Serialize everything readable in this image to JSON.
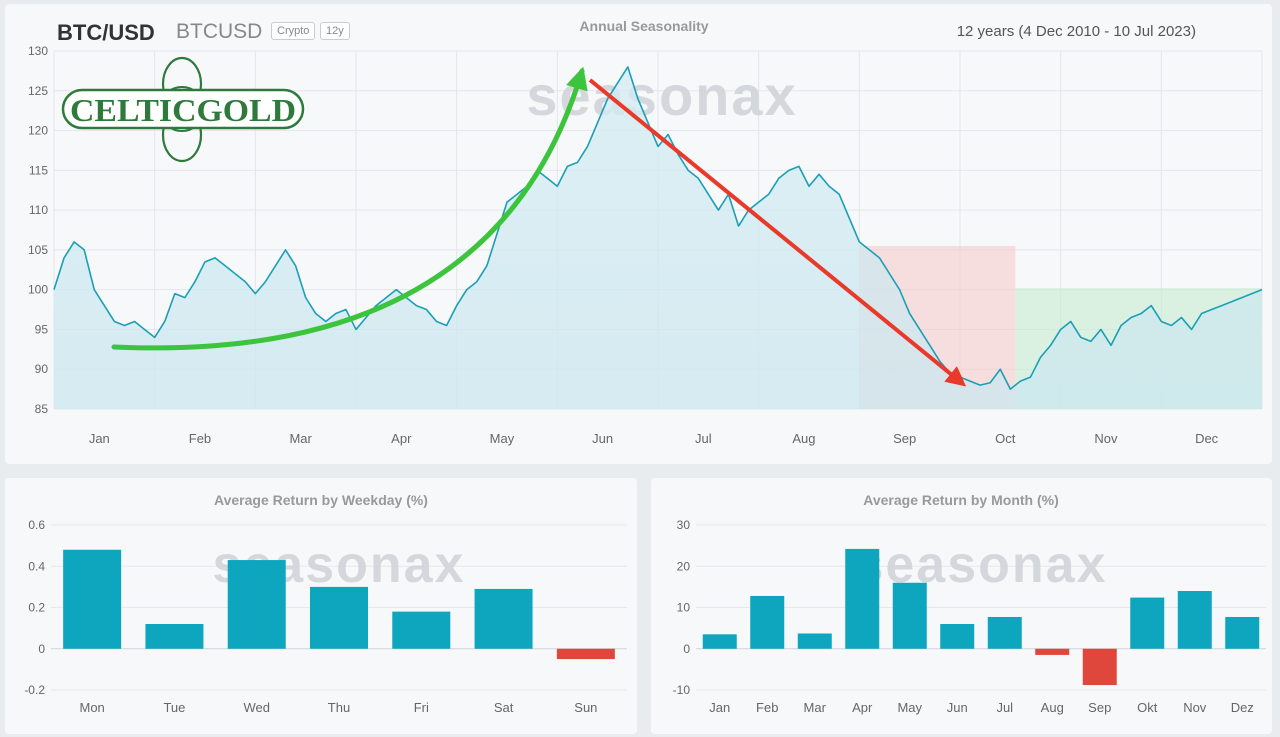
{
  "header": {
    "symbol": "BTC/USD",
    "ticker": "BTCUSD",
    "badges": [
      "Crypto",
      "12y"
    ],
    "period": "12 years (4 Dec 2010 - 10 Jul 2023)"
  },
  "watermark": "seasonax",
  "logo_text": "CELTICGOLD",
  "colors": {
    "line": "#1a9fb5",
    "bar_positive": "#0ea5be",
    "bar_negative": "#e0473c",
    "green_arrow": "#3cc43c",
    "red_arrow": "#e8392a",
    "shade_red": "#f5c9c6",
    "shade_green": "#c6ecd2"
  },
  "chart_data": [
    {
      "type": "line",
      "title": "Annual Seasonality",
      "ylim": [
        85,
        130
      ],
      "yticks": [
        85,
        90,
        95,
        100,
        105,
        110,
        115,
        120,
        125,
        130
      ],
      "months": [
        "Jan",
        "Feb",
        "Mar",
        "Apr",
        "May",
        "Jun",
        "Jul",
        "Aug",
        "Sep",
        "Oct",
        "Nov",
        "Dec"
      ],
      "x": [
        0,
        0.1,
        0.2,
        0.3,
        0.4,
        0.5,
        0.6,
        0.7,
        0.8,
        0.9,
        1.0,
        1.1,
        1.2,
        1.3,
        1.4,
        1.5,
        1.6,
        1.7,
        1.8,
        1.9,
        2.0,
        2.1,
        2.2,
        2.3,
        2.4,
        2.5,
        2.6,
        2.7,
        2.8,
        2.9,
        3.0,
        3.1,
        3.2,
        3.3,
        3.4,
        3.5,
        3.6,
        3.7,
        3.8,
        3.9,
        4.0,
        4.1,
        4.2,
        4.3,
        4.4,
        4.5,
        4.6,
        4.7,
        4.8,
        4.9,
        5.0,
        5.1,
        5.2,
        5.3,
        5.4,
        5.5,
        5.6,
        5.7,
        5.8,
        5.9,
        6.0,
        6.1,
        6.2,
        6.3,
        6.4,
        6.5,
        6.6,
        6.7,
        6.8,
        6.9,
        7.0,
        7.1,
        7.2,
        7.3,
        7.4,
        7.5,
        7.6,
        7.7,
        7.8,
        7.9,
        8.0,
        8.1,
        8.2,
        8.3,
        8.4,
        8.5,
        8.6,
        8.7,
        8.8,
        8.9,
        9.0,
        9.1,
        9.2,
        9.3,
        9.4,
        9.5,
        9.6,
        9.7,
        9.8,
        9.9,
        10.0,
        10.1,
        10.2,
        10.3,
        10.4,
        10.5,
        10.6,
        10.7,
        10.8,
        10.9,
        11.0,
        11.1,
        11.2,
        11.3,
        11.4,
        11.5,
        11.6,
        11.7,
        11.8,
        11.9,
        12.0
      ],
      "y": [
        100,
        104,
        106,
        105,
        100,
        98,
        96,
        95.5,
        96,
        95,
        94,
        96,
        99.5,
        99,
        101,
        103.5,
        104,
        103,
        102,
        101,
        99.5,
        101,
        103,
        105,
        103,
        99,
        97,
        96,
        97,
        97.5,
        95,
        96.5,
        98,
        99,
        100,
        99,
        98,
        97.5,
        96,
        95.5,
        98,
        100,
        101,
        103,
        107,
        111,
        112,
        113,
        115,
        114,
        113,
        115.5,
        116,
        118,
        121,
        124,
        126,
        128,
        124,
        121,
        118,
        119.5,
        117,
        115,
        114,
        112,
        110,
        112,
        108,
        110,
        111,
        112,
        114,
        115,
        115.5,
        113,
        114.5,
        113,
        112,
        109,
        106,
        105,
        104,
        102,
        100,
        97,
        95,
        93,
        91,
        89.5,
        89,
        88.5,
        88,
        88.3,
        90,
        87.5,
        88.5,
        89,
        91.5,
        93,
        95,
        96,
        94,
        93.5,
        95,
        93,
        95.5,
        96.5,
        97,
        98,
        96,
        95.5,
        96.5,
        95,
        97,
        97.5,
        98,
        98.5,
        99,
        99.5,
        100
      ]
    },
    {
      "type": "bar",
      "title": "Average Return by Weekday (%)",
      "categories": [
        "Mon",
        "Tue",
        "Wed",
        "Thu",
        "Fri",
        "Sat",
        "Sun"
      ],
      "values": [
        0.48,
        0.12,
        0.43,
        0.3,
        0.18,
        0.29,
        -0.05
      ],
      "ylim": [
        -0.2,
        0.6
      ],
      "yticks": [
        -0.2,
        0,
        0.2,
        0.4,
        0.6
      ],
      "ytick_labels": [
        "-0.2",
        "0",
        "0.2",
        "0.4",
        "0.6"
      ]
    },
    {
      "type": "bar",
      "title": "Average Return by Month (%)",
      "categories": [
        "Jan",
        "Feb",
        "Mar",
        "Apr",
        "May",
        "Jun",
        "Jul",
        "Aug",
        "Sep",
        "Okt",
        "Nov",
        "Dez"
      ],
      "values": [
        3.5,
        12.8,
        3.7,
        24.2,
        16.0,
        6.0,
        7.7,
        -1.5,
        -8.8,
        12.4,
        14.0,
        7.7
      ],
      "ylim": [
        -10,
        30
      ],
      "yticks": [
        -10,
        0,
        10,
        20,
        30
      ],
      "ytick_labels": [
        "-10",
        "0",
        "10",
        "20",
        "30"
      ]
    }
  ]
}
